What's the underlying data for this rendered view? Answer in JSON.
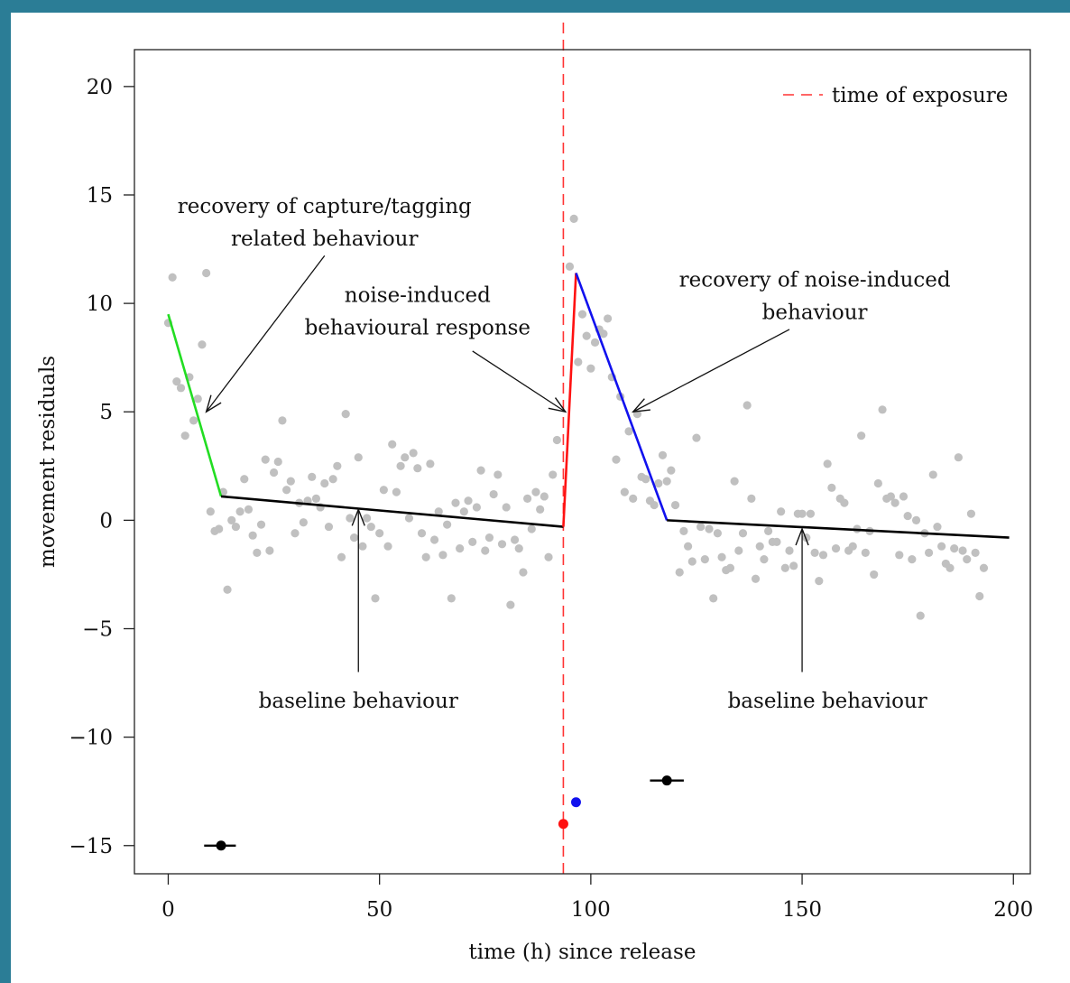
{
  "chart_data": {
    "type": "scatter",
    "title": "",
    "xlabel": "time (h) since release",
    "ylabel": "movement residuals",
    "xlim": [
      -8,
      204
    ],
    "ylim": [
      -16.3,
      21.7
    ],
    "xticks": [
      0,
      50,
      100,
      150,
      200
    ],
    "yticks": [
      20,
      15,
      10,
      5,
      0,
      -5,
      -10,
      -15
    ],
    "ytick_labels": [
      "20",
      "15",
      "10",
      "5",
      "0",
      "−5",
      "−10",
      "−15"
    ],
    "grid": false,
    "legend": {
      "position": "top-right",
      "entries": [
        {
          "label": "time of exposure",
          "style": "dashed",
          "color": "#ff3333"
        }
      ]
    },
    "exposure_time": 93.5,
    "points_color": "#c0c0c0",
    "points": [
      [
        0,
        9.1
      ],
      [
        1,
        11.2
      ],
      [
        2,
        6.4
      ],
      [
        3,
        6.1
      ],
      [
        4,
        3.9
      ],
      [
        5,
        6.6
      ],
      [
        6,
        4.6
      ],
      [
        7,
        5.6
      ],
      [
        8,
        8.1
      ],
      [
        9,
        11.4
      ],
      [
        10,
        0.4
      ],
      [
        11,
        -0.5
      ],
      [
        12,
        -0.4
      ],
      [
        13,
        1.3
      ],
      [
        14,
        -3.2
      ],
      [
        15,
        0.0
      ],
      [
        16,
        -0.3
      ],
      [
        17,
        0.4
      ],
      [
        18,
        1.9
      ],
      [
        19,
        0.5
      ],
      [
        20,
        -0.7
      ],
      [
        21,
        -1.5
      ],
      [
        22,
        -0.2
      ],
      [
        23,
        2.8
      ],
      [
        24,
        -1.4
      ],
      [
        25,
        2.2
      ],
      [
        26,
        2.7
      ],
      [
        27,
        4.6
      ],
      [
        28,
        1.4
      ],
      [
        29,
        1.8
      ],
      [
        30,
        -0.6
      ],
      [
        31,
        0.8
      ],
      [
        32,
        -0.1
      ],
      [
        33,
        0.9
      ],
      [
        34,
        2.0
      ],
      [
        35,
        1.0
      ],
      [
        36,
        0.6
      ],
      [
        37,
        1.7
      ],
      [
        38,
        -0.3
      ],
      [
        39,
        1.9
      ],
      [
        40,
        2.5
      ],
      [
        41,
        -1.7
      ],
      [
        42,
        4.9
      ],
      [
        43,
        0.1
      ],
      [
        44,
        -0.8
      ],
      [
        45,
        2.9
      ],
      [
        46,
        -1.2
      ],
      [
        47,
        0.1
      ],
      [
        48,
        -0.3
      ],
      [
        49,
        -3.6
      ],
      [
        50,
        -0.6
      ],
      [
        51,
        1.4
      ],
      [
        52,
        -1.2
      ],
      [
        53,
        3.5
      ],
      [
        54,
        1.3
      ],
      [
        55,
        2.5
      ],
      [
        56,
        2.9
      ],
      [
        57,
        0.1
      ],
      [
        58,
        3.1
      ],
      [
        59,
        2.4
      ],
      [
        60,
        -0.6
      ],
      [
        61,
        -1.7
      ],
      [
        62,
        2.6
      ],
      [
        63,
        -0.9
      ],
      [
        64,
        0.4
      ],
      [
        65,
        -1.6
      ],
      [
        66,
        -0.2
      ],
      [
        67,
        -3.6
      ],
      [
        68,
        0.8
      ],
      [
        69,
        -1.3
      ],
      [
        70,
        0.4
      ],
      [
        71,
        0.9
      ],
      [
        72,
        -1.0
      ],
      [
        73,
        0.6
      ],
      [
        74,
        2.3
      ],
      [
        75,
        -1.4
      ],
      [
        76,
        -0.8
      ],
      [
        77,
        1.2
      ],
      [
        78,
        2.1
      ],
      [
        79,
        -1.1
      ],
      [
        80,
        0.6
      ],
      [
        81,
        -3.9
      ],
      [
        82,
        -0.9
      ],
      [
        83,
        -1.3
      ],
      [
        84,
        -2.4
      ],
      [
        85,
        1.0
      ],
      [
        86,
        -0.4
      ],
      [
        87,
        1.3
      ],
      [
        88,
        0.5
      ],
      [
        89,
        1.1
      ],
      [
        90,
        -1.7
      ],
      [
        91,
        2.1
      ],
      [
        92,
        3.7
      ],
      [
        95,
        11.7
      ],
      [
        96,
        13.9
      ],
      [
        97,
        7.3
      ],
      [
        98,
        9.5
      ],
      [
        99,
        8.5
      ],
      [
        100,
        7.0
      ],
      [
        101,
        8.2
      ],
      [
        102,
        8.8
      ],
      [
        103,
        8.6
      ],
      [
        104,
        9.3
      ],
      [
        105,
        6.6
      ],
      [
        106,
        2.8
      ],
      [
        107,
        5.7
      ],
      [
        108,
        1.3
      ],
      [
        109,
        4.1
      ],
      [
        110,
        1.0
      ],
      [
        111,
        4.9
      ],
      [
        112,
        2.0
      ],
      [
        113,
        1.9
      ],
      [
        114,
        0.9
      ],
      [
        115,
        0.7
      ],
      [
        116,
        1.7
      ],
      [
        117,
        3.0
      ],
      [
        118,
        1.8
      ],
      [
        119,
        2.3
      ],
      [
        120,
        0.7
      ],
      [
        121,
        -2.4
      ],
      [
        122,
        -0.5
      ],
      [
        123,
        -1.2
      ],
      [
        124,
        -1.9
      ],
      [
        125,
        3.8
      ],
      [
        126,
        -0.3
      ],
      [
        127,
        -1.8
      ],
      [
        128,
        -0.4
      ],
      [
        129,
        -3.6
      ],
      [
        130,
        -0.6
      ],
      [
        131,
        -1.7
      ],
      [
        132,
        -2.3
      ],
      [
        133,
        -2.2
      ],
      [
        134,
        1.8
      ],
      [
        135,
        -1.4
      ],
      [
        136,
        -0.6
      ],
      [
        137,
        5.3
      ],
      [
        138,
        1.0
      ],
      [
        139,
        -2.7
      ],
      [
        140,
        -1.2
      ],
      [
        141,
        -1.8
      ],
      [
        142,
        -0.5
      ],
      [
        143,
        -1.0
      ],
      [
        144,
        -1.0
      ],
      [
        145,
        0.4
      ],
      [
        146,
        -2.2
      ],
      [
        147,
        -1.4
      ],
      [
        148,
        -2.1
      ],
      [
        149,
        0.3
      ],
      [
        150,
        0.3
      ],
      [
        151,
        -0.8
      ],
      [
        152,
        0.3
      ],
      [
        153,
        -1.5
      ],
      [
        154,
        -2.8
      ],
      [
        155,
        -1.6
      ],
      [
        156,
        2.6
      ],
      [
        157,
        1.5
      ],
      [
        158,
        -1.3
      ],
      [
        159,
        1.0
      ],
      [
        160,
        0.8
      ],
      [
        161,
        -1.4
      ],
      [
        162,
        -1.2
      ],
      [
        163,
        -0.4
      ],
      [
        164,
        3.9
      ],
      [
        165,
        -1.5
      ],
      [
        166,
        -0.5
      ],
      [
        167,
        -2.5
      ],
      [
        168,
        1.7
      ],
      [
        169,
        5.1
      ],
      [
        170,
        1.0
      ],
      [
        171,
        1.1
      ],
      [
        172,
        0.8
      ],
      [
        173,
        -1.6
      ],
      [
        174,
        1.1
      ],
      [
        175,
        0.2
      ],
      [
        176,
        -1.8
      ],
      [
        177,
        0.0
      ],
      [
        178,
        -4.4
      ],
      [
        179,
        -0.6
      ],
      [
        180,
        -1.5
      ],
      [
        181,
        2.1
      ],
      [
        182,
        -0.3
      ],
      [
        183,
        -1.2
      ],
      [
        184,
        -2.0
      ],
      [
        185,
        -2.2
      ],
      [
        186,
        -1.3
      ],
      [
        187,
        2.9
      ],
      [
        188,
        -1.4
      ],
      [
        189,
        -1.8
      ],
      [
        190,
        0.3
      ],
      [
        191,
        -1.5
      ],
      [
        192,
        -3.5
      ],
      [
        193,
        -2.2
      ]
    ],
    "segments": [
      {
        "color": "#22dd22",
        "x": [
          0,
          12.5
        ],
        "y": [
          9.5,
          1.1
        ]
      },
      {
        "color": "#000000",
        "x": [
          12.5,
          93.5
        ],
        "y": [
          1.1,
          -0.3
        ]
      },
      {
        "color": "#ff1111",
        "x": [
          93.5,
          96.5
        ],
        "y": [
          -0.3,
          11.4
        ]
      },
      {
        "color": "#1111ee",
        "x": [
          96.5,
          118
        ],
        "y": [
          11.4,
          0.0
        ]
      },
      {
        "color": "#000000",
        "x": [
          118,
          199
        ],
        "y": [
          0.0,
          -0.8
        ]
      }
    ],
    "markers": [
      {
        "x": 12.5,
        "y": -15,
        "color": "#000000",
        "xerr": [
          8.5,
          16
        ]
      },
      {
        "x": 93.5,
        "y": -14,
        "color": "#ff1111"
      },
      {
        "x": 96.5,
        "y": -13,
        "color": "#1111ee"
      },
      {
        "x": 118,
        "y": -12,
        "color": "#000000",
        "xerr": [
          114,
          122
        ]
      }
    ],
    "annotations": [
      {
        "lines": [
          "recovery of capture/tagging",
          "related behaviour"
        ],
        "text_x": 37,
        "text_y": [
          14.5,
          13.0
        ],
        "arrow_from": [
          37,
          12.2
        ],
        "arrow_to": [
          9,
          5.0
        ]
      },
      {
        "lines": [
          "noise-induced",
          "behavioural response"
        ],
        "text_x": 59,
        "text_y": [
          10.4,
          8.9
        ],
        "arrow_from": [
          72,
          7.8
        ],
        "arrow_to": [
          94,
          5.0
        ]
      },
      {
        "lines": [
          "recovery of noise-induced",
          "behaviour"
        ],
        "text_x": 153,
        "text_y": [
          11.1,
          9.6
        ],
        "arrow_from": [
          147,
          8.8
        ],
        "arrow_to": [
          110,
          5.0
        ]
      },
      {
        "lines": [
          "baseline behaviour"
        ],
        "text_x": 45,
        "text_y": [
          -8.3
        ],
        "arrow_from": [
          45,
          -7.0
        ],
        "arrow_to": [
          45,
          0.5
        ]
      },
      {
        "lines": [
          "baseline behaviour"
        ],
        "text_x": 156,
        "text_y": [
          -8.3
        ],
        "arrow_from": [
          150,
          -7.0
        ],
        "arrow_to": [
          150,
          -0.4
        ]
      }
    ]
  }
}
